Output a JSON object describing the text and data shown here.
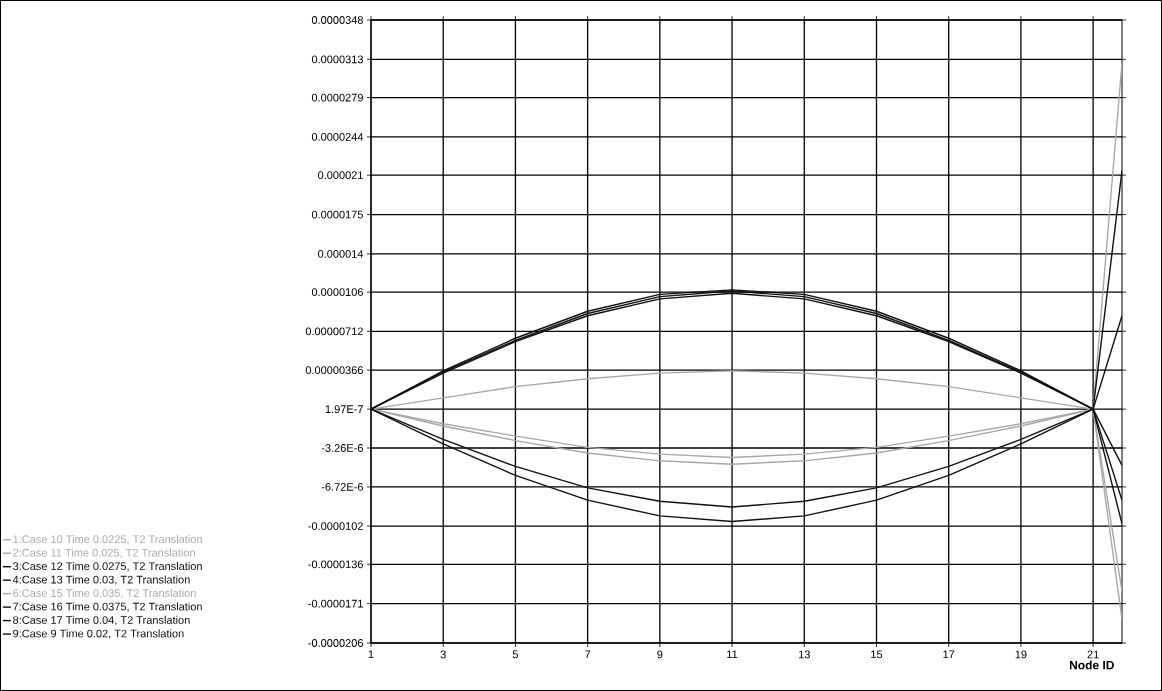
{
  "chart_data": {
    "type": "line",
    "xlabel": "Node ID",
    "x": [
      1,
      3,
      5,
      7,
      9,
      11,
      13,
      15,
      17,
      19,
      21,
      21.8
    ],
    "xlim": [
      1,
      21.8
    ],
    "xticks": [
      1,
      3,
      5,
      7,
      9,
      11,
      13,
      15,
      17,
      19,
      21
    ],
    "ylim": [
      -2.06e-05,
      3.48e-05
    ],
    "yticks": [
      {
        "value": 3.48e-05,
        "label": "0.0000348"
      },
      {
        "value": 3.13e-05,
        "label": "0.0000313"
      },
      {
        "value": 2.79e-05,
        "label": "0.0000279"
      },
      {
        "value": 2.44e-05,
        "label": "0.0000244"
      },
      {
        "value": 2.1e-05,
        "label": "0.000021"
      },
      {
        "value": 1.75e-05,
        "label": "0.0000175"
      },
      {
        "value": 1.4e-05,
        "label": "0.000014"
      },
      {
        "value": 1.06e-05,
        "label": "0.0000106"
      },
      {
        "value": 7.12e-06,
        "label": "0.00000712"
      },
      {
        "value": 3.66e-06,
        "label": "0.00000366"
      },
      {
        "value": 1.97e-07,
        "label": "1.97E-7"
      },
      {
        "value": -3.26e-06,
        "label": "-3.26E-6"
      },
      {
        "value": -6.72e-06,
        "label": "-6.72E-6"
      },
      {
        "value": -1.02e-05,
        "label": "-0.0000102"
      },
      {
        "value": -1.36e-05,
        "label": "-0.0000136"
      },
      {
        "value": -1.71e-05,
        "label": "-0.0000171"
      },
      {
        "value": -2.06e-05,
        "label": "-0.0000206"
      }
    ],
    "grid": true,
    "legend": "left",
    "marker": "none",
    "series": [
      {
        "name": "1:Case 10 Time 0.0225, T2 Translation",
        "color": "#a8a8a8",
        "values": [
          2e-07,
          -1.1e-06,
          -2.2e-06,
          -3.2e-06,
          -3.8e-06,
          -4.1e-06,
          -3.8e-06,
          -3.2e-06,
          -2.2e-06,
          -1.1e-06,
          2e-07,
          -1.85e-05
        ]
      },
      {
        "name": "2:Case 11 Time 0.025, T2 Translation",
        "color": "#a8a8a8",
        "values": [
          2e-07,
          1.2e-06,
          2.2e-06,
          2.9e-06,
          3.4e-06,
          3.6e-06,
          3.4e-06,
          2.9e-06,
          2.2e-06,
          1.2e-06,
          2e-07,
          3.1e-05
        ]
      },
      {
        "name": "3:Case 12 Time 0.0275, T2 Translation",
        "color": "#111111",
        "values": [
          2e-07,
          3.6e-06,
          6.5e-06,
          8.9e-06,
          1.04e-05,
          1.08e-05,
          1.04e-05,
          8.9e-06,
          6.5e-06,
          3.6e-06,
          2e-07,
          2.14e-05
        ]
      },
      {
        "name": "4:Case 13 Time 0.03, T2 Translation",
        "color": "#111111",
        "values": [
          2e-07,
          3.4e-06,
          6.2e-06,
          8.5e-06,
          1e-05,
          1.05e-05,
          1e-05,
          8.5e-06,
          6.2e-06,
          3.4e-06,
          2e-07,
          8.5e-06
        ]
      },
      {
        "name": "6:Case 15 Time 0.035, T2 Translation",
        "color": "#a8a8a8",
        "values": [
          2e-07,
          -1.3e-06,
          -2.6e-06,
          -3.7e-06,
          -4.4e-06,
          -4.7e-06,
          -4.4e-06,
          -3.7e-06,
          -2.6e-06,
          -1.3e-06,
          2e-07,
          -1.6e-05
        ]
      },
      {
        "name": "7:Case 16 Time 0.0375, T2 Translation",
        "color": "#111111",
        "values": [
          2e-07,
          -2.5e-06,
          -4.9e-06,
          -6.8e-06,
          -8e-06,
          -8.5e-06,
          -8e-06,
          -6.8e-06,
          -4.9e-06,
          -2.5e-06,
          2e-07,
          -4.8e-06
        ]
      },
      {
        "name": "8:Case 17 Time 0.04, T2 Translation",
        "color": "#111111",
        "values": [
          2e-07,
          -2.9e-06,
          -5.7e-06,
          -7.9e-06,
          -9.3e-06,
          -9.8e-06,
          -9.3e-06,
          -7.9e-06,
          -5.7e-06,
          -2.9e-06,
          2e-07,
          -7.9e-06
        ]
      },
      {
        "name": "9:Case 9 Time 0.02, T2 Translation",
        "color": "#111111",
        "values": [
          2e-07,
          3.5e-06,
          6.3e-06,
          8.7e-06,
          1.02e-05,
          1.07e-05,
          1.02e-05,
          8.7e-06,
          6.3e-06,
          3.5e-06,
          2e-07,
          -1e-05
        ]
      }
    ]
  }
}
